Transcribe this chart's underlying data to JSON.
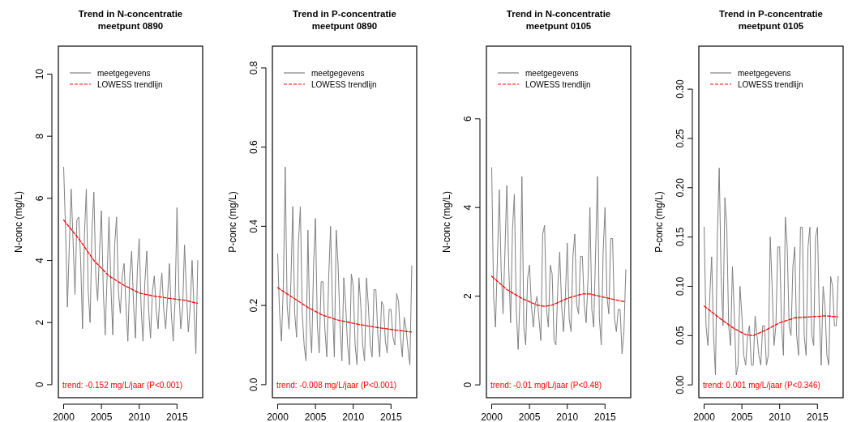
{
  "chart_data": [
    {
      "type": "line",
      "title": "Trend in N-concentratie",
      "subtitle": "meetpunt 0890",
      "ylabel": "N-conc (mg/L)",
      "xlim": [
        1999.3,
        2018.4
      ],
      "ylim": [
        -0.42,
        10.9
      ],
      "xticks": [
        2000,
        2005,
        2010,
        2015
      ],
      "yticks": [
        0,
        2,
        4,
        6,
        8,
        10
      ],
      "legend": "top left",
      "annotations": [
        "trend: -0.152 mg/L/jaar (P<0.001)"
      ],
      "x": [
        2000,
        2000.25,
        2000.5,
        2000.75,
        2001,
        2001.25,
        2001.5,
        2001.75,
        2002,
        2002.25,
        2002.5,
        2002.75,
        2003,
        2003.25,
        2003.5,
        2003.75,
        2004,
        2004.25,
        2004.5,
        2004.75,
        2005,
        2005.25,
        2005.5,
        2005.75,
        2006,
        2006.25,
        2006.5,
        2006.75,
        2007,
        2007.25,
        2007.5,
        2007.75,
        2008,
        2008.25,
        2008.5,
        2008.75,
        2009,
        2009.25,
        2009.5,
        2009.75,
        2010,
        2010.25,
        2010.5,
        2010.75,
        2011,
        2011.25,
        2011.5,
        2011.75,
        2012,
        2012.25,
        2012.5,
        2012.75,
        2013,
        2013.25,
        2013.5,
        2013.75,
        2014,
        2014.25,
        2014.5,
        2014.75,
        2015,
        2015.25,
        2015.5,
        2015.75,
        2016,
        2016.25,
        2016.5,
        2016.75,
        2017,
        2017.25,
        2017.5,
        2017.75
      ],
      "series": [
        {
          "name": "meetgegevens",
          "color": "#808080",
          "line_style": "solid",
          "values": [
            7.0,
            5.0,
            2.5,
            4.5,
            6.3,
            4.6,
            2.9,
            5.3,
            5.4,
            4.0,
            1.8,
            4.8,
            6.3,
            3.0,
            2.0,
            5.0,
            6.2,
            3.5,
            2.7,
            4.3,
            5.6,
            3.0,
            1.6,
            3.5,
            5.4,
            3.2,
            1.6,
            4.5,
            5.4,
            3.0,
            2.3,
            3.5,
            3.9,
            2.5,
            1.4,
            3.5,
            4.3,
            2.6,
            1.5,
            3.7,
            4.7,
            2.5,
            1.4,
            3.3,
            4.3,
            2.4,
            1.5,
            3.0,
            3.5,
            2.4,
            1.8,
            3.0,
            3.6,
            2.4,
            1.8,
            2.8,
            3.9,
            2.3,
            1.4,
            2.7,
            5.7,
            3.0,
            1.8,
            2.5,
            4.5,
            3.0,
            1.7,
            2.5,
            4.0,
            2.5,
            1.0,
            4.0
          ]
        },
        {
          "name": "LOWESS trendlijn",
          "color": "#ff0000",
          "line_style": "dashed",
          "x": [
            2000,
            2002,
            2004,
            2006,
            2008,
            2010,
            2012,
            2014,
            2016,
            2017.7
          ],
          "values": [
            5.3,
            4.7,
            4.0,
            3.5,
            3.2,
            2.95,
            2.85,
            2.78,
            2.72,
            2.62
          ]
        }
      ]
    },
    {
      "type": "line",
      "title": "Trend in P-concentratie",
      "subtitle": "meetpunt 0890",
      "ylabel": "P-conc (mg/L)",
      "xlim": [
        1999.3,
        2018.4
      ],
      "ylim": [
        -0.033,
        0.855
      ],
      "xticks": [
        2000,
        2005,
        2010,
        2015
      ],
      "yticks": [
        {
          "value": 0,
          "label": "0.0"
        },
        0.2,
        0.4,
        0.6,
        0.8
      ],
      "legend": "top left",
      "annotations": [
        "trend: -0.008 mg/L/jaar (P<0.001)"
      ],
      "x": [
        2000,
        2000.25,
        2000.5,
        2000.75,
        2001,
        2001.25,
        2001.5,
        2001.75,
        2002,
        2002.25,
        2002.5,
        2002.75,
        2003,
        2003.25,
        2003.5,
        2003.75,
        2004,
        2004.25,
        2004.5,
        2004.75,
        2005,
        2005.25,
        2005.5,
        2005.75,
        2006,
        2006.25,
        2006.5,
        2006.75,
        2007,
        2007.25,
        2007.5,
        2007.75,
        2008,
        2008.25,
        2008.5,
        2008.75,
        2009,
        2009.25,
        2009.5,
        2009.75,
        2010,
        2010.25,
        2010.5,
        2010.75,
        2011,
        2011.25,
        2011.5,
        2011.75,
        2012,
        2012.25,
        2012.5,
        2012.75,
        2013,
        2013.25,
        2013.5,
        2013.75,
        2014,
        2014.25,
        2014.5,
        2014.75,
        2015,
        2015.25,
        2015.5,
        2015.75,
        2016,
        2016.25,
        2016.5,
        2016.75,
        2017,
        2017.25,
        2017.5,
        2017.75
      ],
      "series": [
        {
          "name": "meetgegevens",
          "color": "#808080",
          "line_style": "solid",
          "values": [
            0.33,
            0.18,
            0.11,
            0.25,
            0.55,
            0.2,
            0.14,
            0.26,
            0.45,
            0.18,
            0.12,
            0.36,
            0.45,
            0.18,
            0.1,
            0.06,
            0.39,
            0.15,
            0.08,
            0.3,
            0.42,
            0.15,
            0.08,
            0.26,
            0.26,
            0.14,
            0.07,
            0.27,
            0.4,
            0.2,
            0.07,
            0.39,
            0.3,
            0.15,
            0.06,
            0.27,
            0.2,
            0.1,
            0.05,
            0.28,
            0.25,
            0.1,
            0.05,
            0.27,
            0.2,
            0.1,
            0.06,
            0.27,
            0.2,
            0.1,
            0.07,
            0.24,
            0.24,
            0.13,
            0.07,
            0.21,
            0.2,
            0.11,
            0.08,
            0.19,
            0.19,
            0.12,
            0.1,
            0.23,
            0.21,
            0.12,
            0.07,
            0.17,
            0.14,
            0.09,
            0.05,
            0.3
          ]
        },
        {
          "name": "LOWESS trendlijn",
          "color": "#ff0000",
          "line_style": "dashed",
          "x": [
            2000,
            2002,
            2004,
            2006,
            2008,
            2010,
            2012,
            2014,
            2016,
            2017.7
          ],
          "values": [
            0.245,
            0.22,
            0.195,
            0.175,
            0.163,
            0.155,
            0.148,
            0.142,
            0.137,
            0.133
          ]
        }
      ]
    },
    {
      "type": "line",
      "title": "Trend in N-concentratie",
      "subtitle": "meetpunt 0105",
      "ylabel": "N-conc (mg/L)",
      "xlim": [
        1999.3,
        2018.4
      ],
      "ylim": [
        -0.29,
        7.64
      ],
      "xticks": [
        2000,
        2005,
        2010,
        2015
      ],
      "yticks": [
        0,
        2,
        4,
        6
      ],
      "legend": "top left",
      "annotations": [
        "trend: -0.01 mg/L/jaar (P<0.48)"
      ],
      "x": [
        2000,
        2000.25,
        2000.5,
        2000.75,
        2001,
        2001.25,
        2001.5,
        2001.75,
        2002,
        2002.25,
        2002.5,
        2002.75,
        2003,
        2003.25,
        2003.5,
        2003.75,
        2004,
        2004.25,
        2004.5,
        2004.75,
        2005,
        2005.25,
        2005.5,
        2005.75,
        2006,
        2006.25,
        2006.5,
        2006.75,
        2007,
        2007.25,
        2007.5,
        2007.75,
        2008,
        2008.25,
        2008.5,
        2008.75,
        2009,
        2009.25,
        2009.5,
        2009.75,
        2010,
        2010.25,
        2010.5,
        2010.75,
        2011,
        2011.25,
        2011.5,
        2011.75,
        2012,
        2012.25,
        2012.5,
        2012.75,
        2013,
        2013.25,
        2013.5,
        2013.75,
        2014,
        2014.25,
        2014.5,
        2014.75,
        2015,
        2015.25,
        2015.5,
        2015.75,
        2016,
        2016.25,
        2016.5,
        2016.75,
        2017,
        2017.25,
        2017.5,
        2017.75
      ],
      "series": [
        {
          "name": "meetgegevens",
          "color": "#808080",
          "line_style": "solid",
          "values": [
            4.9,
            2.0,
            1.3,
            2.8,
            4.4,
            2.6,
            1.6,
            3.0,
            4.5,
            2.7,
            1.4,
            3.5,
            4.3,
            1.7,
            0.8,
            2.0,
            4.7,
            1.3,
            0.9,
            2.4,
            2.7,
            1.8,
            1.3,
            1.8,
            2.0,
            1.5,
            1.0,
            3.4,
            3.6,
            1.7,
            1.3,
            2.7,
            2.5,
            1.0,
            0.9,
            2.2,
            3.0,
            1.8,
            1.2,
            2.0,
            3.2,
            1.5,
            1.2,
            2.9,
            3.4,
            1.8,
            1.6,
            2.9,
            2.9,
            1.8,
            1.4,
            2.4,
            4.0,
            1.7,
            1.3,
            3.0,
            4.7,
            1.5,
            0.9,
            3.0,
            4.0,
            2.0,
            1.6,
            3.3,
            3.3,
            1.5,
            1.2,
            1.7,
            1.7,
            0.7,
            1.2,
            2.6
          ]
        },
        {
          "name": "LOWESS trendlijn",
          "color": "#ff0000",
          "line_style": "dashed",
          "x": [
            2000,
            2002,
            2004,
            2006,
            2007,
            2008,
            2010,
            2012,
            2013,
            2015,
            2017.7
          ],
          "values": [
            2.45,
            2.15,
            1.95,
            1.8,
            1.77,
            1.8,
            1.95,
            2.05,
            2.05,
            1.97,
            1.87
          ]
        }
      ]
    },
    {
      "type": "line",
      "title": "Trend in P-concentratie",
      "subtitle": "meetpunt 0105",
      "ylabel": "P-conc (mg/L)",
      "xlim": [
        1999.3,
        2018.4
      ],
      "ylim": [
        -0.013,
        0.3436
      ],
      "xticks": [
        2000,
        2005,
        2010,
        2015
      ],
      "yticks": [
        {
          "value": 0,
          "label": "0.00"
        },
        {
          "value": 0.05,
          "label": "0.05"
        },
        {
          "value": 0.1,
          "label": "0.10"
        },
        0.15,
        {
          "value": 0.2,
          "label": "0.20"
        },
        0.25,
        {
          "value": 0.3,
          "label": "0.30"
        }
      ],
      "legend": "top left",
      "annotations": [
        "trend: 0.001 mg/L/jaar (P<0.346)"
      ],
      "x": [
        2000,
        2000.25,
        2000.5,
        2000.75,
        2001,
        2001.25,
        2001.5,
        2001.75,
        2002,
        2002.25,
        2002.5,
        2002.75,
        2003,
        2003.25,
        2003.5,
        2003.75,
        2004,
        2004.25,
        2004.5,
        2004.75,
        2005,
        2005.25,
        2005.5,
        2005.75,
        2006,
        2006.25,
        2006.5,
        2006.75,
        2007,
        2007.25,
        2007.5,
        2007.75,
        2008,
        2008.25,
        2008.5,
        2008.75,
        2009,
        2009.25,
        2009.5,
        2009.75,
        2010,
        2010.25,
        2010.5,
        2010.75,
        2011,
        2011.25,
        2011.5,
        2011.75,
        2012,
        2012.25,
        2012.5,
        2012.75,
        2013,
        2013.25,
        2013.5,
        2013.75,
        2014,
        2014.25,
        2014.5,
        2014.75,
        2015,
        2015.25,
        2015.5,
        2015.75,
        2016,
        2016.25,
        2016.5,
        2016.75,
        2017,
        2017.25,
        2017.5,
        2017.75
      ],
      "series": [
        {
          "name": "meetgegevens",
          "color": "#808080",
          "line_style": "solid",
          "values": [
            0.16,
            0.06,
            0.04,
            0.09,
            0.13,
            0.05,
            0.01,
            0.15,
            0.22,
            0.11,
            0.06,
            0.19,
            0.16,
            0.06,
            0.04,
            0.12,
            0.07,
            0.01,
            0.02,
            0.1,
            0.07,
            0.03,
            0.02,
            0.05,
            0.06,
            0.02,
            0.02,
            0.07,
            0.05,
            0.03,
            0.02,
            0.06,
            0.06,
            0.02,
            0.03,
            0.15,
            0.1,
            0.04,
            0.06,
            0.14,
            0.14,
            0.06,
            0.03,
            0.17,
            0.14,
            0.06,
            0.05,
            0.12,
            0.14,
            0.05,
            0.03,
            0.16,
            0.16,
            0.05,
            0.03,
            0.14,
            0.16,
            0.05,
            0.04,
            0.15,
            0.16,
            0.07,
            0.02,
            0.1,
            0.08,
            0.03,
            0.02,
            0.11,
            0.1,
            0.06,
            0.06,
            0.11
          ]
        },
        {
          "name": "LOWESS trendlijn",
          "color": "#ff0000",
          "line_style": "dashed",
          "x": [
            2000,
            2002,
            2004,
            2005.5,
            2006.5,
            2008,
            2010,
            2012,
            2014,
            2016,
            2017.7
          ],
          "values": [
            0.08,
            0.068,
            0.057,
            0.051,
            0.05,
            0.055,
            0.063,
            0.068,
            0.069,
            0.07,
            0.069
          ]
        }
      ]
    }
  ]
}
